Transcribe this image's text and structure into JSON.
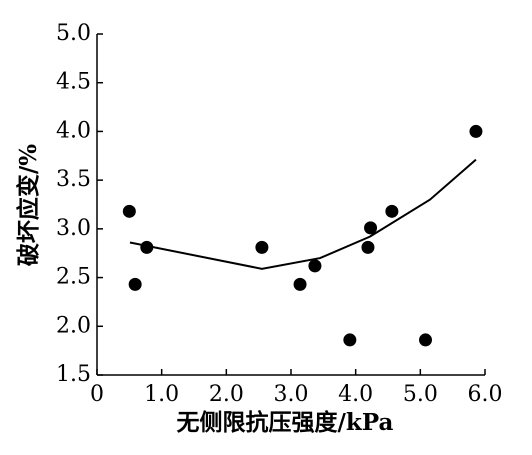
{
  "chart_data": {
    "type": "scatter",
    "x_label": "无侧限抗压强度/kPa",
    "y_label": "破坏应变/%",
    "xlim": [
      0,
      6
    ],
    "ylim": [
      1.5,
      5
    ],
    "xticks": [
      0,
      {
        "value": 1,
        "label": "1.0"
      },
      {
        "value": 2,
        "label": "2.0"
      },
      {
        "value": 3,
        "label": "3.0"
      },
      {
        "value": 4,
        "label": "4.0"
      },
      {
        "value": 5,
        "label": "5.0"
      },
      {
        "value": 6,
        "label": "6.0"
      }
    ],
    "yticks": [
      1.5,
      {
        "value": 2,
        "label": "2.0"
      },
      2.5,
      {
        "value": 3,
        "label": "3.0"
      },
      3.5,
      {
        "value": 4,
        "label": "4.0"
      },
      4.5,
      {
        "value": 5,
        "label": "5.0"
      }
    ],
    "series": [
      {
        "type": "scatter",
        "color": "#000000",
        "x": [
          0.5,
          0.59,
          0.77,
          2.55,
          3.14,
          3.37,
          3.91,
          4.19,
          4.23,
          4.56,
          5.08,
          5.86
        ],
        "values": [
          3.18,
          2.43,
          2.81,
          2.81,
          2.43,
          2.62,
          1.86,
          2.81,
          3.01,
          3.18,
          1.86,
          4.0
        ]
      },
      {
        "type": "line",
        "color": "#000000",
        "x": [
          0.51,
          2.55,
          3.45,
          4.22,
          5.15,
          5.86
        ],
        "values": [
          2.86,
          2.59,
          2.7,
          2.92,
          3.3,
          3.71
        ]
      }
    ]
  }
}
